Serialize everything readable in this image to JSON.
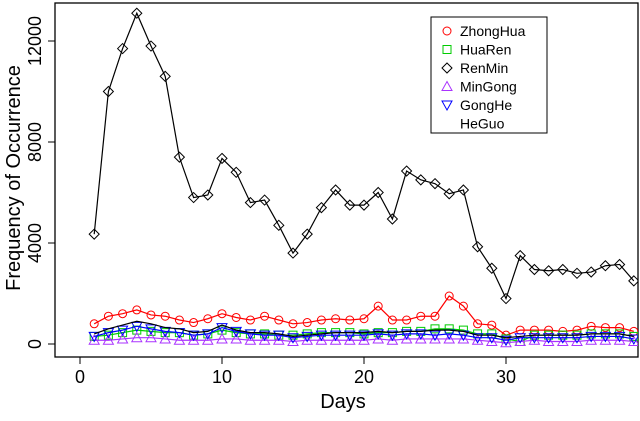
{
  "chart_data": {
    "type": "line",
    "title": "",
    "xlabel": "Days",
    "ylabel": "Frequency of Occurrence",
    "xlim": [
      -4,
      39.3
    ],
    "ylim": [
      -500,
      13500
    ],
    "xticks": [
      0,
      10,
      20,
      30
    ],
    "yticks": [
      0,
      4000,
      8000,
      12000
    ],
    "grid": false,
    "legend_position": "top-right",
    "x": [
      1,
      2,
      3,
      4,
      5,
      6,
      7,
      8,
      9,
      10,
      11,
      12,
      13,
      14,
      15,
      16,
      17,
      18,
      19,
      20,
      21,
      22,
      23,
      24,
      25,
      26,
      27,
      28,
      29,
      30,
      31,
      32,
      33,
      34,
      35,
      36,
      37,
      38,
      39
    ],
    "series": [
      {
        "name": "ZhongHua",
        "color": "#ff0000",
        "marker": "circle",
        "values": [
          800,
          1100,
          1200,
          1350,
          1150,
          1100,
          950,
          850,
          1000,
          1200,
          1050,
          950,
          1100,
          950,
          800,
          850,
          950,
          1000,
          950,
          1000,
          1500,
          950,
          950,
          1100,
          1100,
          1900,
          1500,
          800,
          750,
          350,
          550,
          550,
          550,
          500,
          550,
          700,
          650,
          650,
          500
        ]
      },
      {
        "name": "HuaRen",
        "color": "#00cc00",
        "marker": "square",
        "values": [
          300,
          350,
          450,
          550,
          500,
          450,
          450,
          350,
          400,
          550,
          450,
          400,
          400,
          350,
          350,
          400,
          450,
          450,
          450,
          400,
          450,
          450,
          500,
          500,
          600,
          600,
          550,
          400,
          400,
          200,
          100,
          350,
          350,
          350,
          350,
          400,
          400,
          400,
          300
        ]
      },
      {
        "name": "RenMin",
        "color": "#000000",
        "marker": "diamond",
        "values": [
          4350,
          10000,
          11700,
          13100,
          11800,
          10600,
          7400,
          5800,
          5900,
          7350,
          6800,
          5600,
          5700,
          4700,
          3600,
          4350,
          5400,
          6100,
          5500,
          5500,
          6000,
          4950,
          6850,
          6500,
          6350,
          5950,
          6100,
          3850,
          3000,
          1800,
          3500,
          2950,
          2900,
          2950,
          2800,
          2850,
          3100,
          3150,
          2500
        ]
      },
      {
        "name": "MinGong",
        "color": "#aa33ff",
        "marker": "triangle-up",
        "values": [
          150,
          150,
          200,
          250,
          250,
          200,
          150,
          150,
          150,
          200,
          200,
          150,
          150,
          150,
          100,
          150,
          150,
          150,
          150,
          150,
          200,
          150,
          200,
          200,
          200,
          200,
          200,
          150,
          100,
          50,
          100,
          150,
          100,
          100,
          100,
          150,
          150,
          150,
          100
        ]
      },
      {
        "name": "GongHe",
        "color": "#0000ff",
        "marker": "triangle-down",
        "values": [
          300,
          450,
          550,
          700,
          600,
          500,
          450,
          350,
          400,
          650,
          500,
          400,
          350,
          350,
          250,
          300,
          350,
          350,
          350,
          350,
          400,
          350,
          400,
          400,
          350,
          400,
          350,
          250,
          250,
          150,
          250,
          250,
          250,
          250,
          250,
          300,
          300,
          300,
          200
        ]
      },
      {
        "name": "HeGuo",
        "color": "#000000",
        "marker": "none",
        "values": [
          400,
          600,
          750,
          900,
          800,
          650,
          600,
          450,
          500,
          750,
          550,
          450,
          450,
          400,
          300,
          350,
          400,
          450,
          450,
          450,
          500,
          450,
          500,
          500,
          550,
          550,
          500,
          350,
          350,
          250,
          300,
          350,
          350,
          350,
          350,
          400,
          400,
          400,
          300
        ]
      }
    ]
  }
}
